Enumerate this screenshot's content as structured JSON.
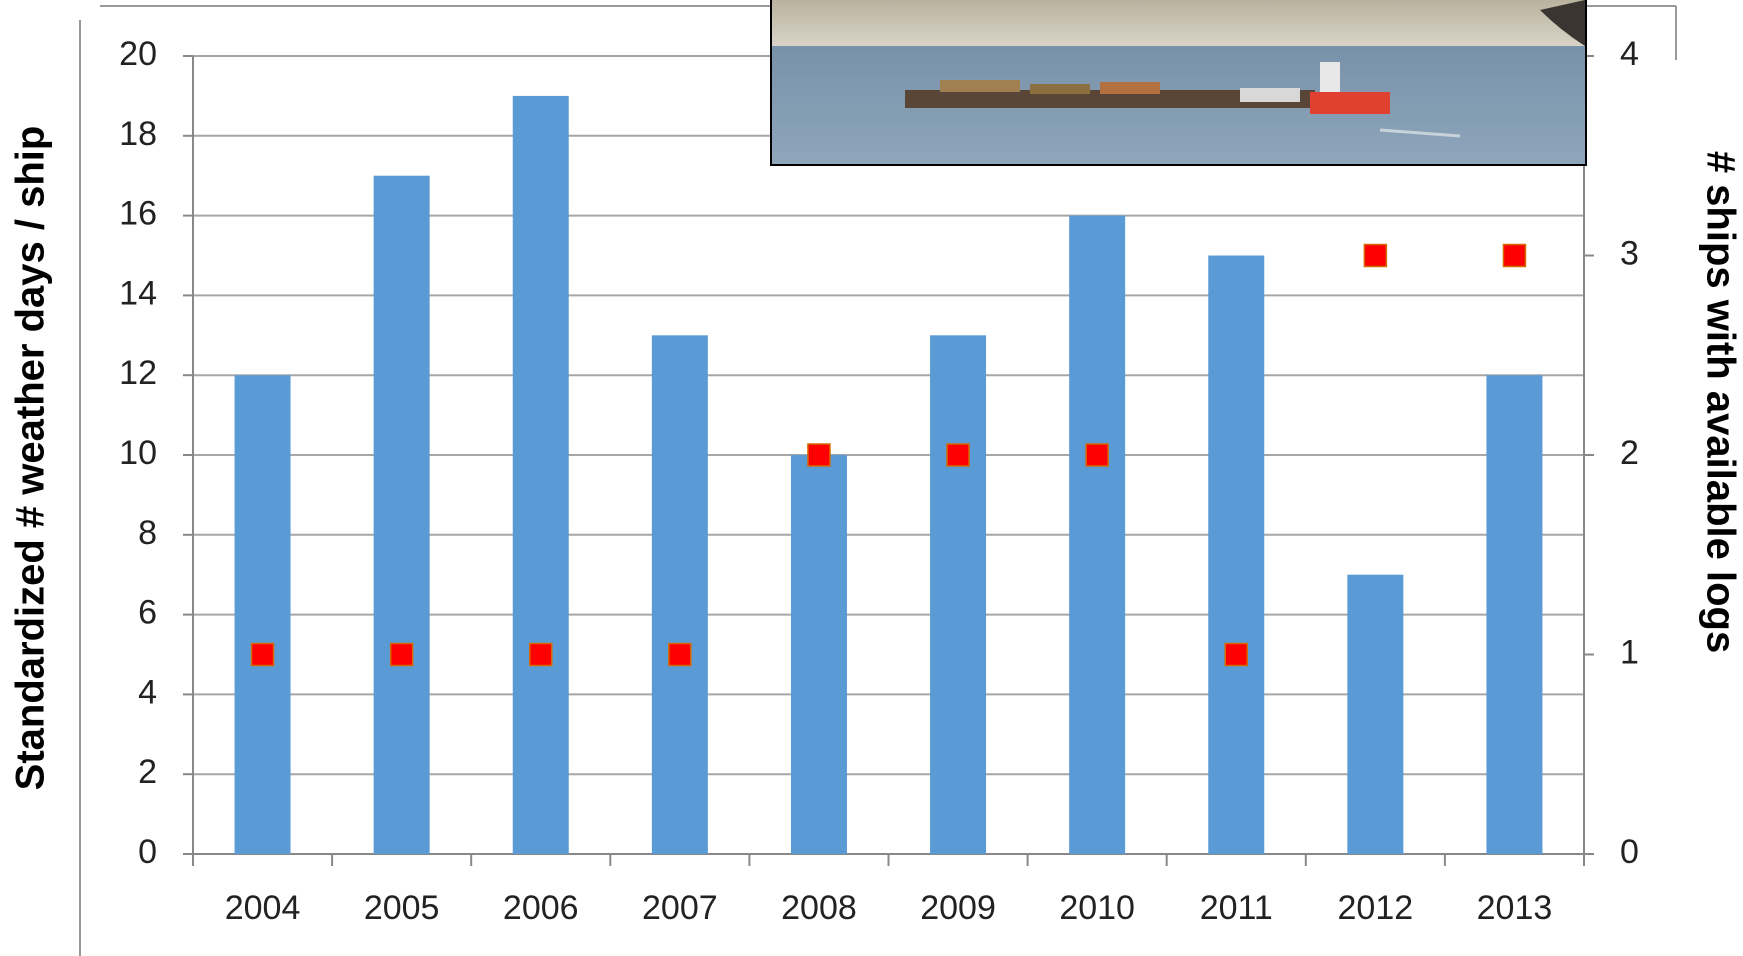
{
  "chart_data": {
    "type": "bar",
    "categories": [
      "2004",
      "2005",
      "2006",
      "2007",
      "2008",
      "2009",
      "2010",
      "2011",
      "2012",
      "2013"
    ],
    "series": [
      {
        "type": "bar",
        "color": "#5b9bd5",
        "values": [
          12,
          17,
          19,
          13,
          10,
          13,
          16,
          15,
          7,
          12
        ]
      },
      {
        "type": "scatter",
        "axis": "y2",
        "color": "#ff0000",
        "values": [
          1,
          1,
          1,
          1,
          2,
          2,
          2,
          1,
          3,
          3
        ]
      }
    ],
    "ylabel": "Standardized # weather days / ship",
    "y2label": "# ships with available logs",
    "ylim": [
      0,
      20
    ],
    "yticks": [
      0,
      2,
      4,
      6,
      8,
      10,
      12,
      14,
      16,
      18,
      20
    ],
    "y2lim": [
      0,
      4
    ],
    "y2ticks": [
      0,
      1,
      2,
      3,
      4
    ],
    "grid": true
  }
}
